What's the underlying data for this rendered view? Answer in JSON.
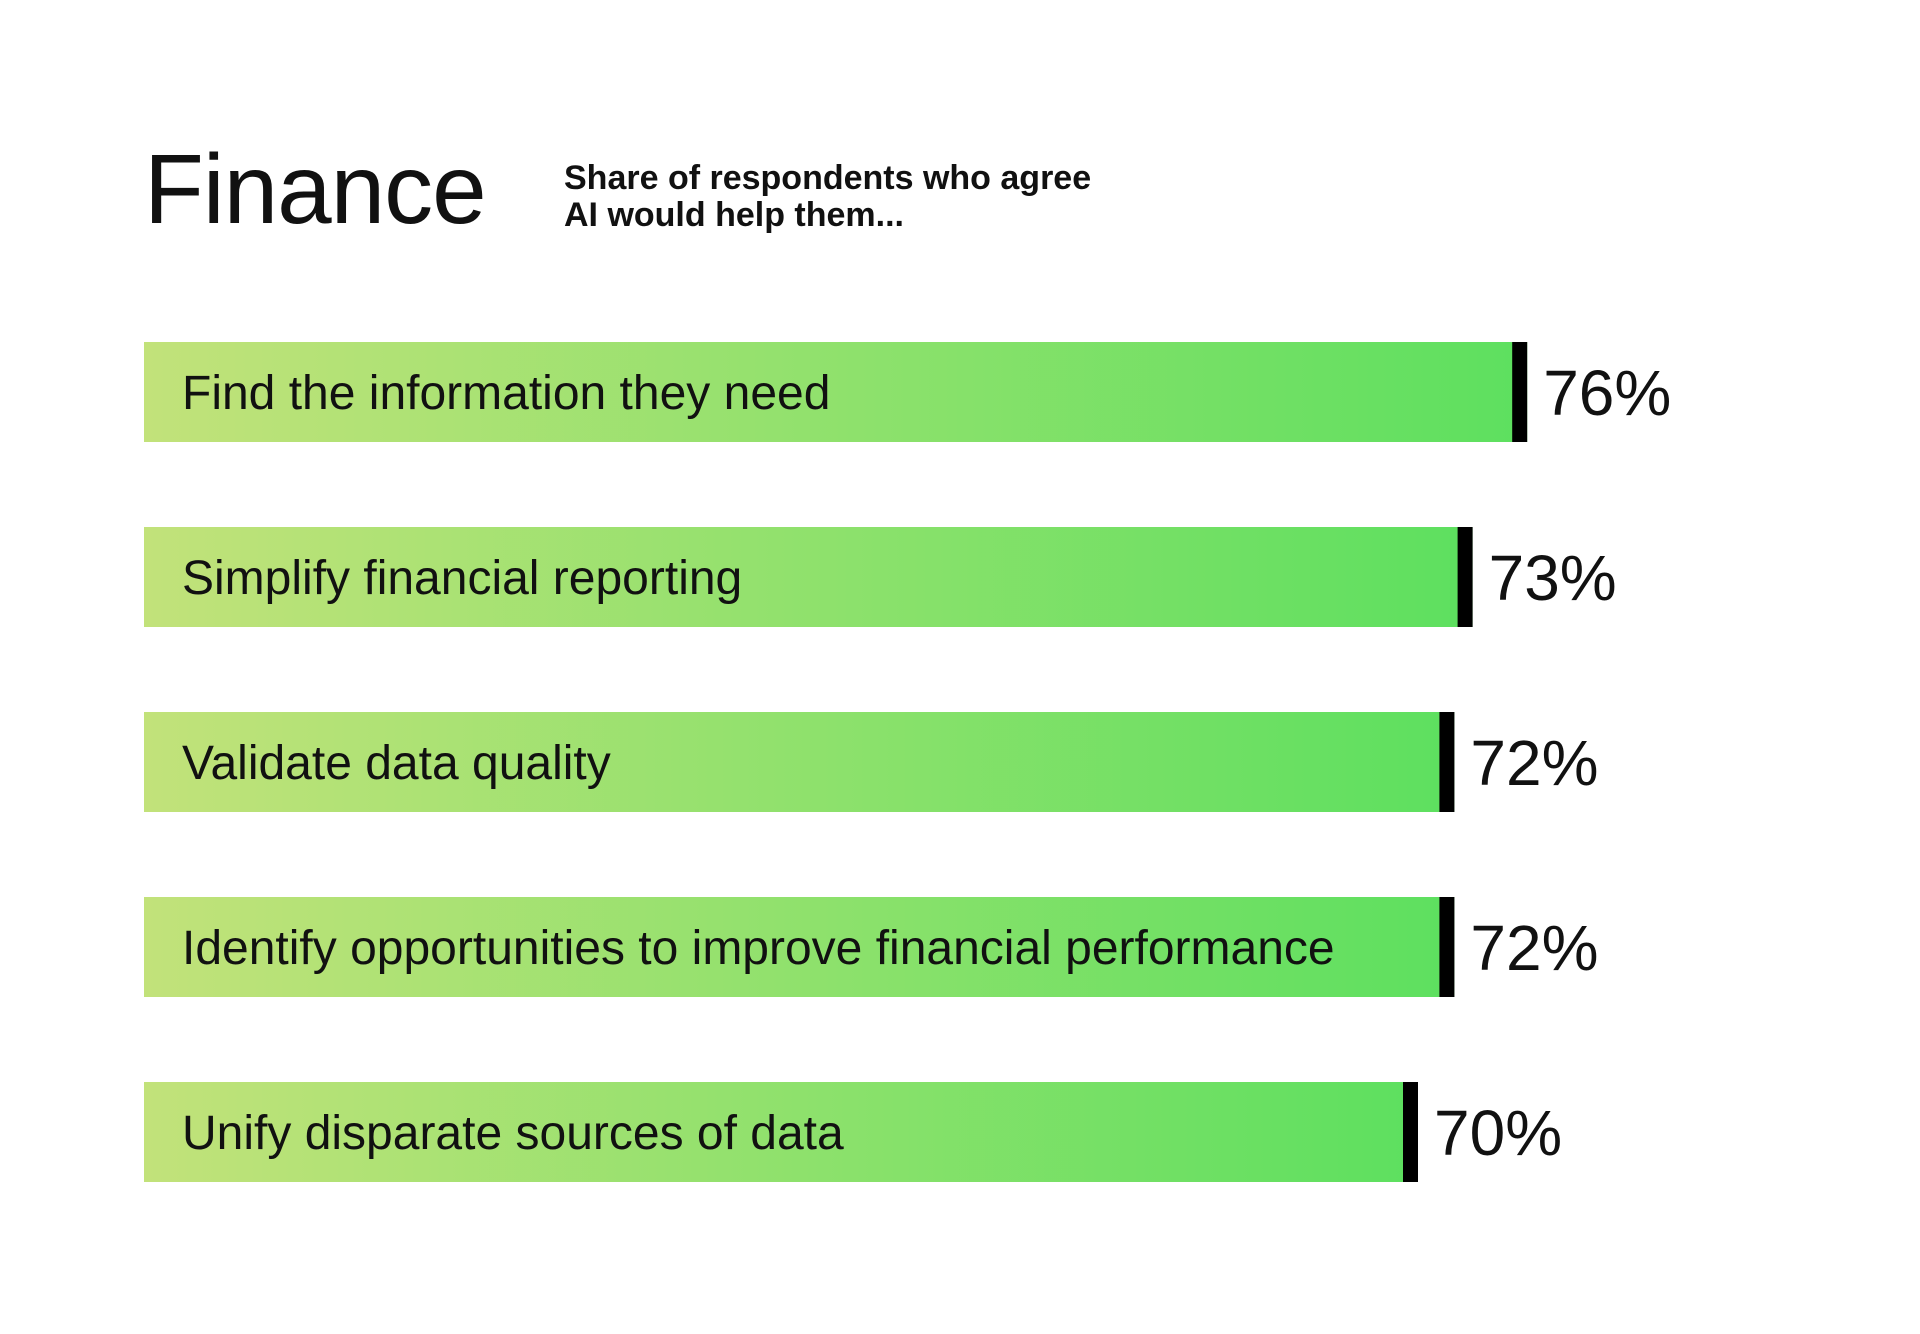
{
  "chart_data": {
    "type": "bar",
    "orientation": "horizontal",
    "title": "Finance",
    "subtitle_lines": [
      "Share of respondents who agree",
      "AI would help them..."
    ],
    "categories": [
      "Find the information they need",
      "Simplify financial reporting",
      "Validate data quality",
      "Identify opportunities to improve financial performance",
      "Unify disparate sources of data"
    ],
    "values": [
      76,
      73,
      72,
      72,
      70
    ],
    "value_labels": [
      "76%",
      "73%",
      "72%",
      "72%",
      "70%"
    ],
    "unit": "%",
    "xlim": [
      0,
      100
    ],
    "grid": false,
    "legend": "none",
    "colors": {
      "gradient_start": "#c2e27a",
      "gradient_end": "#5de05f",
      "end_marker": "#000000",
      "text": "#111111"
    }
  }
}
